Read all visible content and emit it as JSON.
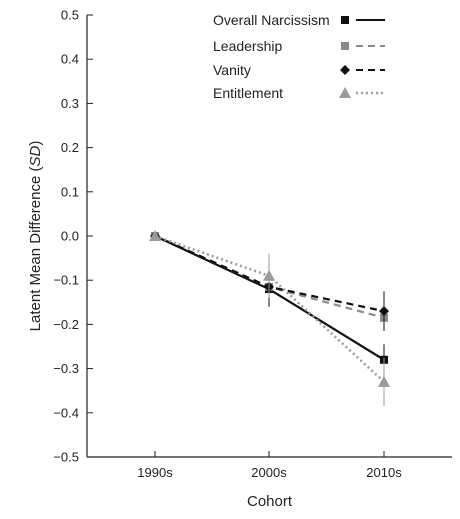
{
  "chart_data": {
    "type": "line",
    "categories": [
      "1990s",
      "2000s",
      "2010s"
    ],
    "ylabel_prefix": "Latent Mean Difference (",
    "ylabel_italic": "SD",
    "ylabel_suffix": ")",
    "xlabel": "Cohort",
    "ylim": [
      -0.5,
      0.5
    ],
    "yticks": [
      0.5,
      0.4,
      0.3,
      0.2,
      0.1,
      0.0,
      -0.1,
      -0.2,
      -0.3,
      -0.4,
      -0.5
    ],
    "ytick_labels": [
      "0.5",
      "0.4",
      "0.3",
      "0.2",
      "0.1",
      "0.0",
      "−0.1",
      "−0.2",
      "−0.3",
      "−0.4",
      "−0.5"
    ],
    "legend_position": "top-right",
    "grid": false,
    "series": [
      {
        "name": "Overall Narcissism",
        "values": [
          0.0,
          -0.12,
          -0.28
        ],
        "error": [
          0.0,
          0.04,
          0.035
        ],
        "color": "#111111",
        "dash": "solid",
        "marker": "square"
      },
      {
        "name": "Leadership",
        "values": [
          0.0,
          -0.115,
          -0.185
        ],
        "error": [
          0.0,
          0.0,
          0.0
        ],
        "color": "#8a8a8a",
        "dash": "dashed",
        "marker": "square"
      },
      {
        "name": "Vanity",
        "values": [
          0.0,
          -0.115,
          -0.17
        ],
        "error": [
          0.0,
          0.0,
          0.045
        ],
        "color": "#111111",
        "dash": "dashed",
        "marker": "diamond"
      },
      {
        "name": "Entitlement",
        "values": [
          0.0,
          -0.09,
          -0.33
        ],
        "error": [
          0.0,
          0.05,
          0.055
        ],
        "color": "#9a9a9a",
        "dash": "dotted",
        "marker": "triangle"
      }
    ]
  }
}
